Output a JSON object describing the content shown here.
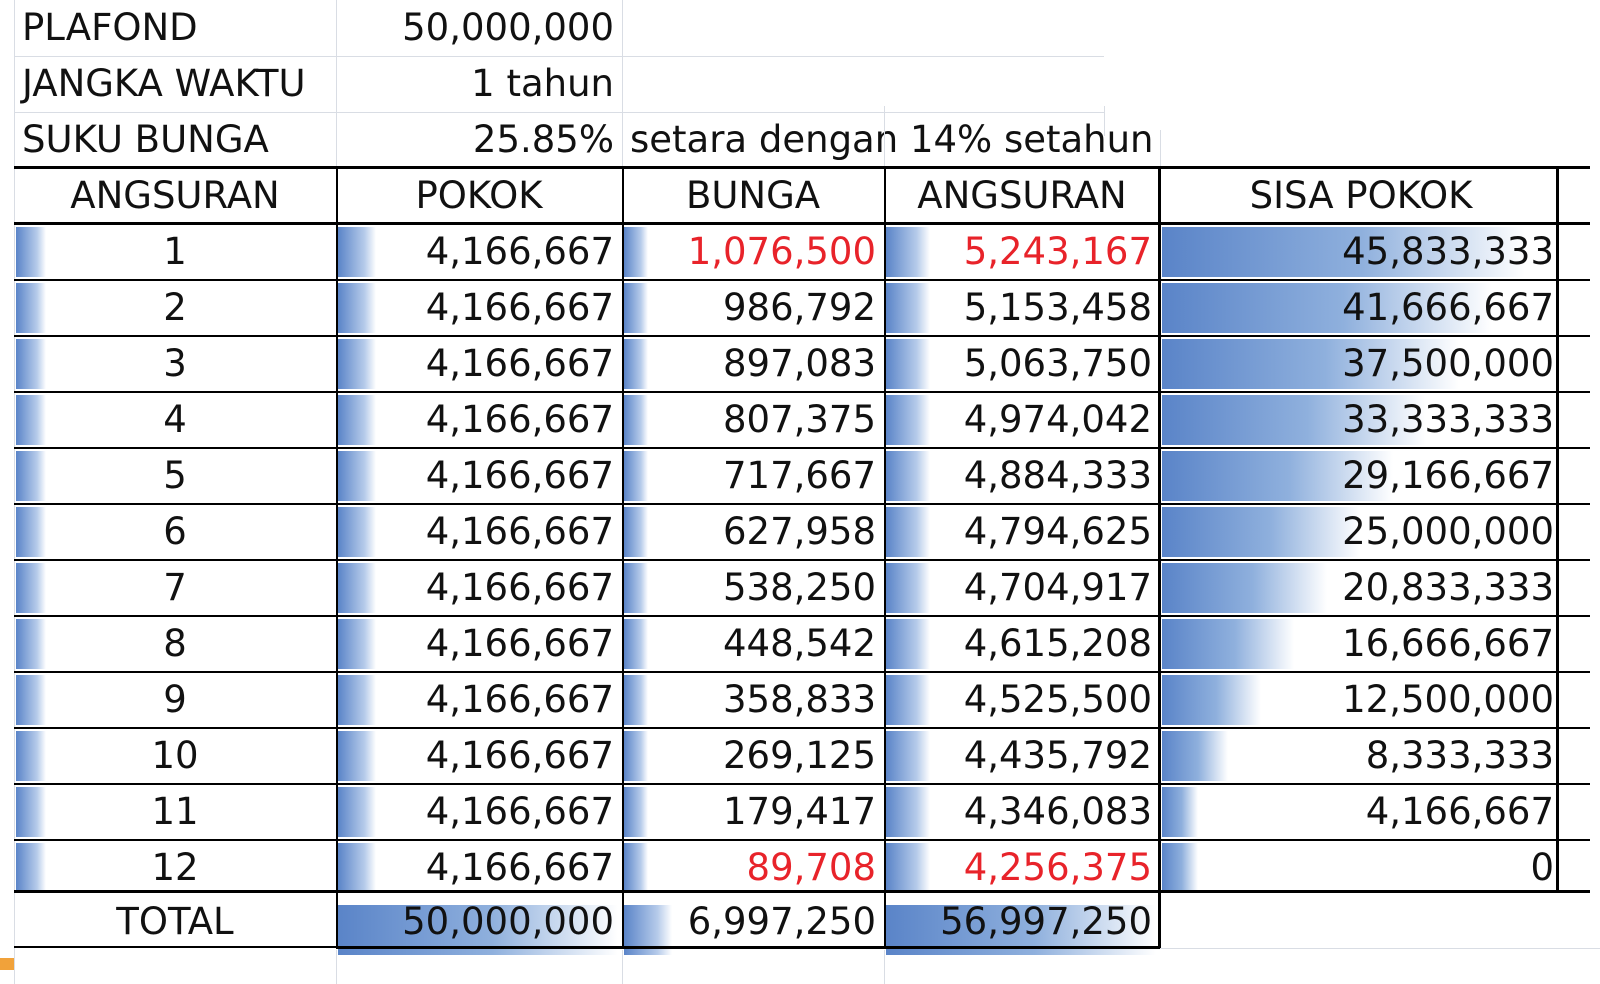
{
  "params": {
    "plafond": {
      "label": "PLAFOND",
      "value": "50,000,000"
    },
    "jangka": {
      "label": "JANGKA WAKTU",
      "value": "1 tahun"
    },
    "bunga": {
      "label": "SUKU BUNGA",
      "value": "25.85%",
      "note": "setara dengan 14% setahun"
    }
  },
  "headers": [
    "ANGSURAN",
    "POKOK",
    "BUNGA",
    "ANGSURAN",
    "SISA POKOK"
  ],
  "rows": [
    {
      "no": "1",
      "pokok": "4,166,667",
      "bunga": "1,076,500",
      "angsuran": "5,243,167",
      "sisa": "45,833,333"
    },
    {
      "no": "2",
      "pokok": "4,166,667",
      "bunga": "986,792",
      "angsuran": "5,153,458",
      "sisa": "41,666,667"
    },
    {
      "no": "3",
      "pokok": "4,166,667",
      "bunga": "897,083",
      "angsuran": "5,063,750",
      "sisa": "37,500,000"
    },
    {
      "no": "4",
      "pokok": "4,166,667",
      "bunga": "807,375",
      "angsuran": "4,974,042",
      "sisa": "33,333,333"
    },
    {
      "no": "5",
      "pokok": "4,166,667",
      "bunga": "717,667",
      "angsuran": "4,884,333",
      "sisa": "29,166,667"
    },
    {
      "no": "6",
      "pokok": "4,166,667",
      "bunga": "627,958",
      "angsuran": "4,794,625",
      "sisa": "25,000,000"
    },
    {
      "no": "7",
      "pokok": "4,166,667",
      "bunga": "538,250",
      "angsuran": "4,704,917",
      "sisa": "20,833,333"
    },
    {
      "no": "8",
      "pokok": "4,166,667",
      "bunga": "448,542",
      "angsuran": "4,615,208",
      "sisa": "16,666,667"
    },
    {
      "no": "9",
      "pokok": "4,166,667",
      "bunga": "358,833",
      "angsuran": "4,525,500",
      "sisa": "12,500,000"
    },
    {
      "no": "10",
      "pokok": "4,166,667",
      "bunga": "269,125",
      "angsuran": "4,435,792",
      "sisa": "8,333,333"
    },
    {
      "no": "11",
      "pokok": "4,166,667",
      "bunga": "179,417",
      "angsuran": "4,346,083",
      "sisa": "4,166,667"
    },
    {
      "no": "12",
      "pokok": "4,166,667",
      "bunga": "89,708",
      "angsuran": "4,256,375",
      "sisa": "0"
    }
  ],
  "total": {
    "label": "TOTAL",
    "pokok": "50,000,000",
    "bunga": "6,997,250",
    "angsuran": "56,997,250"
  },
  "highlight": {
    "color": "#e8232a",
    "rows": [
      1,
      12
    ],
    "columns": [
      "bunga",
      "angsuran"
    ]
  },
  "data_bar_color": "#5a84c8"
}
